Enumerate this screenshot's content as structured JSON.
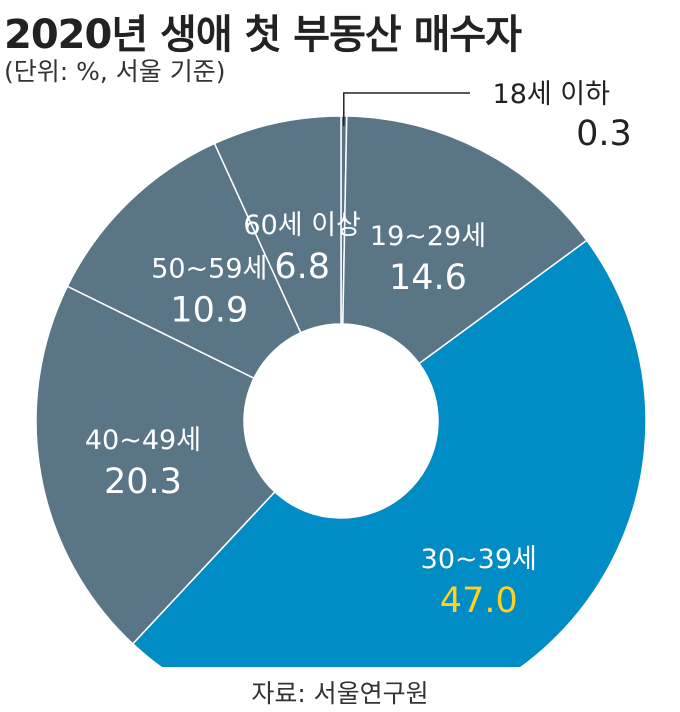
{
  "chart_data": {
    "type": "pie",
    "title": "2020년 생애 첫 부동산 매수자",
    "subtitle": "(단위: %, 서울 기준)",
    "source": "자료: 서울연구원",
    "categories": [
      "18세 이하",
      "19~29세",
      "30~39세",
      "40~49세",
      "50~59세",
      "60세 이상"
    ],
    "values": [
      0.3,
      14.6,
      47.0,
      20.3,
      10.9,
      6.8
    ],
    "value_labels": [
      "0.3",
      "14.6",
      "47.0",
      "20.3",
      "10.9",
      "6.8"
    ],
    "colors": [
      "#5a7586",
      "#5a7586",
      "#008cc4",
      "#5a7586",
      "#5a7586",
      "#5a7586"
    ],
    "highlight": "30~39세",
    "highlight_value_color": "#ffd21f",
    "donut": true,
    "legend": "none"
  }
}
